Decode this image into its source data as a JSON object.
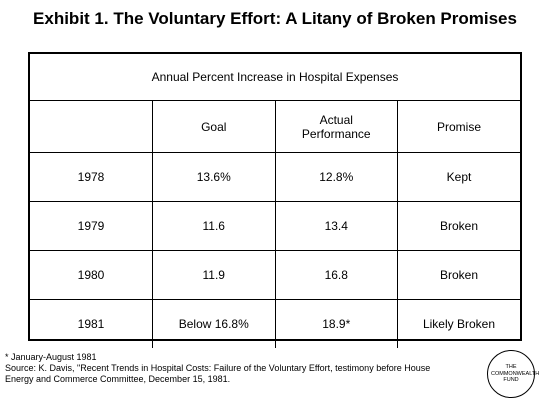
{
  "title": "Exhibit 1. The Voluntary Effort: A Litany of Broken Promises",
  "table": {
    "caption": "Annual Percent Increase in Hospital Expenses",
    "headers": [
      "",
      "Goal",
      "Actual\nPerformance",
      "Promise"
    ],
    "rows": [
      {
        "year": "1978",
        "goal": "13.6%",
        "actual": "12.8%",
        "promise": "Kept"
      },
      {
        "year": "1979",
        "goal": "11.6",
        "actual": "13.4",
        "promise": "Broken"
      },
      {
        "year": "1980",
        "goal": "11.9",
        "actual": "16.8",
        "promise": "Broken"
      },
      {
        "year": "1981",
        "goal": "Below 16.8%",
        "actual": "18.9*",
        "promise": "Likely Broken"
      }
    ]
  },
  "footnote": {
    "asterisk_note": "* January-August 1981",
    "source": "Source: K. Davis, \"Recent Trends in Hospital Costs: Failure of the Voluntary Effort, testimony before House Energy and Commerce Committee, December 15, 1981."
  },
  "logo": {
    "line1": "THE",
    "line2": "COMMONWEALTH",
    "line3": "FUND"
  }
}
